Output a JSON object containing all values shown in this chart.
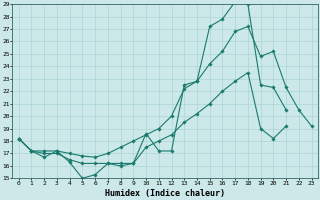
{
  "xlabel": "Humidex (Indice chaleur)",
  "background_color": "#cce8e8",
  "grid_color": "#aad4d4",
  "line_color": "#1a7a6e",
  "xlim": [
    -0.5,
    23.5
  ],
  "ylim": [
    15,
    29
  ],
  "xticks": [
    0,
    1,
    2,
    3,
    4,
    5,
    6,
    7,
    8,
    9,
    10,
    11,
    12,
    13,
    14,
    15,
    16,
    17,
    18,
    19,
    20,
    21,
    22,
    23
  ],
  "yticks": [
    15,
    16,
    17,
    18,
    19,
    20,
    21,
    22,
    23,
    24,
    25,
    26,
    27,
    28,
    29
  ],
  "line1_x": [
    0,
    1,
    2,
    3,
    4,
    5,
    6,
    7,
    8,
    9,
    10,
    11,
    12,
    13,
    14,
    15,
    16,
    17,
    18,
    19,
    20,
    21
  ],
  "line1_y": [
    18.2,
    17.2,
    16.7,
    17.2,
    16.3,
    15.0,
    15.3,
    16.2,
    16.2,
    16.2,
    18.6,
    17.2,
    17.2,
    22.5,
    22.8,
    27.2,
    27.8,
    29.2,
    29.0,
    22.5,
    22.3,
    20.5
  ],
  "line2_x": [
    0,
    1,
    2,
    3,
    4,
    5,
    6,
    7,
    8,
    9,
    10,
    11,
    12,
    13,
    14,
    15,
    16,
    17,
    18,
    19,
    20,
    21,
    22,
    23
  ],
  "line2_y": [
    18.2,
    17.2,
    17.2,
    17.2,
    17.0,
    16.8,
    16.7,
    17.0,
    17.5,
    18.0,
    18.5,
    19.0,
    20.0,
    22.2,
    22.8,
    24.2,
    25.2,
    26.8,
    27.2,
    24.8,
    25.2,
    22.3,
    20.5,
    19.2
  ],
  "line3_x": [
    0,
    1,
    2,
    3,
    4,
    5,
    6,
    7,
    8,
    9,
    10,
    11,
    12,
    13,
    14,
    15,
    16,
    17,
    18,
    19,
    20,
    21
  ],
  "line3_y": [
    18.2,
    17.2,
    17.0,
    17.0,
    16.5,
    16.2,
    16.2,
    16.2,
    16.0,
    16.2,
    17.5,
    18.0,
    18.5,
    19.5,
    20.2,
    21.0,
    22.0,
    22.8,
    23.5,
    19.0,
    18.2,
    19.2
  ]
}
